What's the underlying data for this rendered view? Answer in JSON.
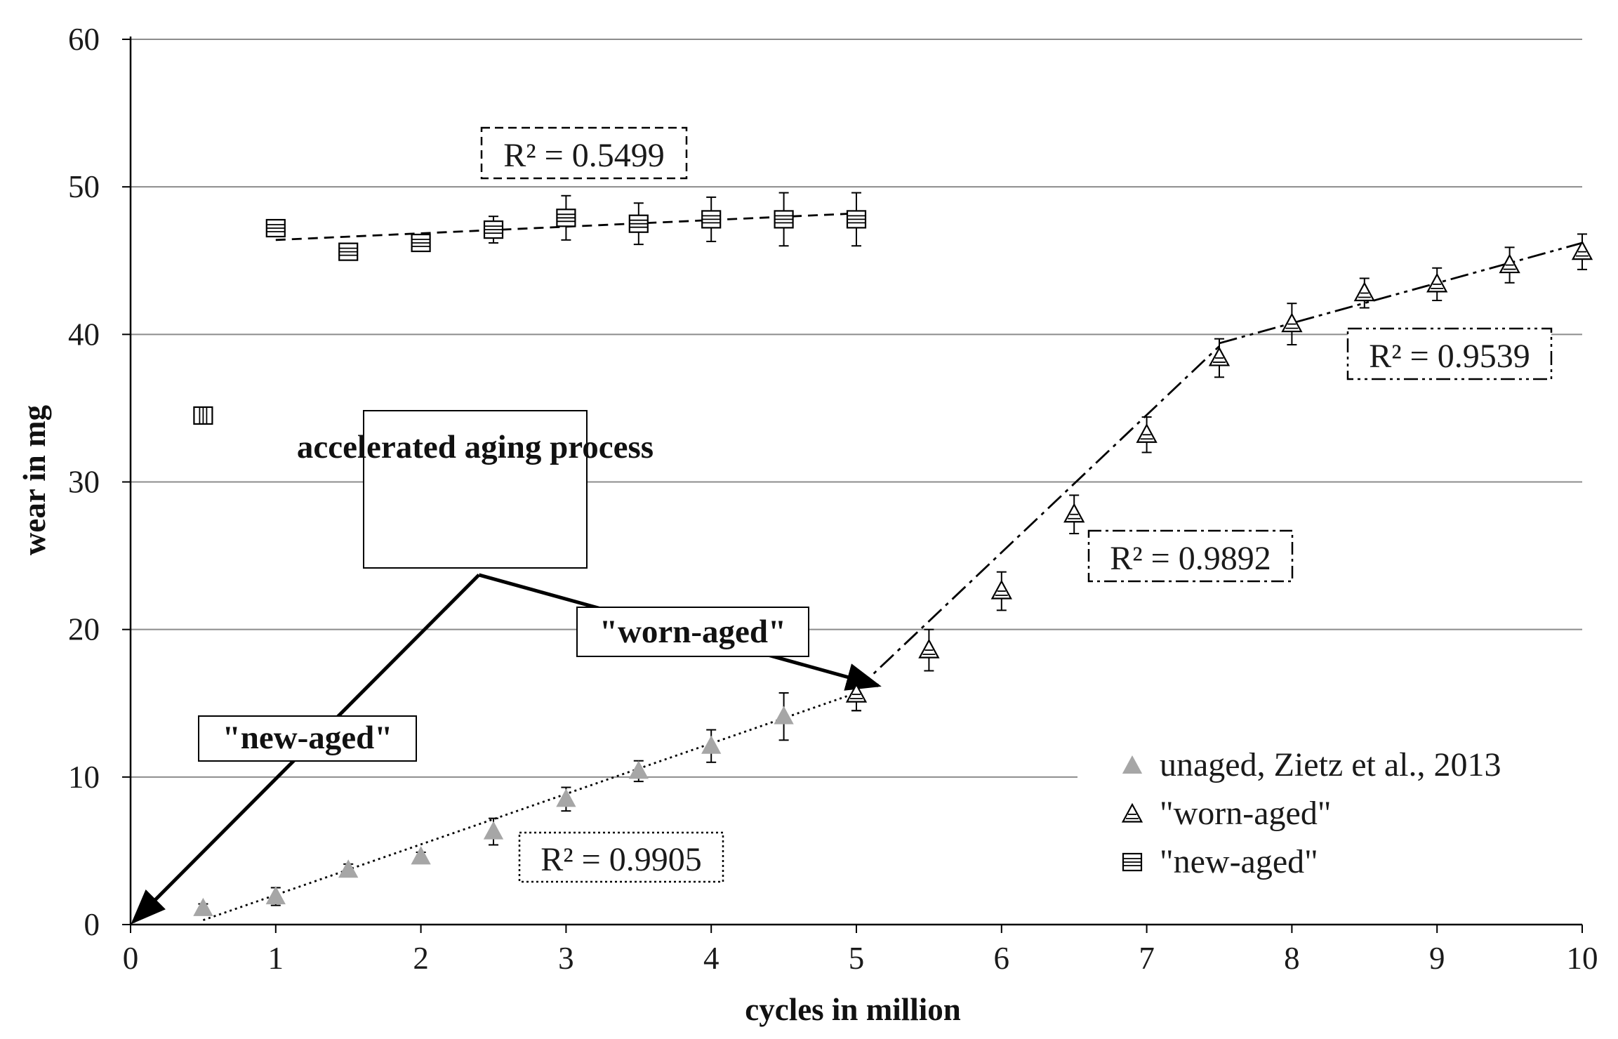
{
  "chart_data": {
    "type": "scatter",
    "title": "",
    "xlabel": "cycles in million",
    "ylabel": "wear in mg",
    "xlim": [
      0,
      10
    ],
    "ylim": [
      0,
      60
    ],
    "x_ticks": [
      "0",
      "1",
      "2",
      "3",
      "4",
      "5",
      "6",
      "7",
      "8",
      "9",
      "10"
    ],
    "y_ticks": [
      "0",
      "10",
      "20",
      "30",
      "40",
      "50",
      "60"
    ],
    "grid": "horizontal",
    "legend_position": "bottom-right",
    "series": [
      {
        "name": "unaged, Zietz et al., 2013",
        "marker": "filled-triangle",
        "color": "#a6a6a6",
        "x": [
          0.5,
          1.0,
          1.5,
          2.0,
          2.5,
          3.0,
          3.5,
          4.0,
          4.5,
          5.0
        ],
        "y": [
          1.1,
          1.9,
          3.7,
          4.6,
          6.3,
          8.5,
          10.4,
          12.1,
          14.1,
          15.6
        ],
        "err": [
          0.3,
          0.6,
          0.4,
          0.3,
          0.9,
          0.8,
          0.7,
          1.1,
          1.6,
          1.1
        ]
      },
      {
        "name": "\"worn-aged\"",
        "marker": "hatched-triangle",
        "color": "#000000",
        "x": [
          5.0,
          5.5,
          6.0,
          6.5,
          7.0,
          7.5,
          8.0,
          8.5,
          9.0,
          9.5,
          10.0
        ],
        "y": [
          15.6,
          18.6,
          22.6,
          27.8,
          33.2,
          38.4,
          40.7,
          42.8,
          43.4,
          44.7,
          45.6
        ],
        "err": [
          1.1,
          1.4,
          1.3,
          1.3,
          1.2,
          1.3,
          1.4,
          1.0,
          1.1,
          1.2,
          1.2
        ]
      },
      {
        "name": "\"new-aged\"",
        "marker": "hatched-square",
        "color": "#000000",
        "x": [
          1.0,
          1.5,
          2.0,
          2.5,
          3.0,
          3.5,
          4.0,
          4.5,
          5.0
        ],
        "y": [
          47.2,
          45.6,
          46.2,
          47.1,
          47.9,
          47.5,
          47.8,
          47.8,
          47.8
        ],
        "err": [
          0.3,
          0.3,
          0.4,
          0.9,
          1.5,
          1.4,
          1.5,
          1.8,
          1.8
        ]
      },
      {
        "name": "",
        "marker": "vertical-hatched-square",
        "color": "#000000",
        "x": [
          0.5
        ],
        "y": [
          34.5
        ],
        "err": [
          0
        ]
      }
    ],
    "trendlines": [
      {
        "series": "unaged",
        "style": "dotted",
        "x": [
          0.5,
          5.0
        ],
        "y": [
          0.3,
          15.7
        ],
        "r2": "R² = 0.9905"
      },
      {
        "series": "worn-aged 5-7.5",
        "style": "dash-dot",
        "x": [
          5.0,
          7.5
        ],
        "y": [
          15.9,
          39.2
        ],
        "r2": "R² = 0.9892"
      },
      {
        "series": "worn-aged 7.5-10",
        "style": "dash-dot-dot",
        "x": [
          7.5,
          10.0
        ],
        "y": [
          39.4,
          46.2
        ],
        "r2": "R² = 0.9539"
      },
      {
        "series": "new-aged",
        "style": "dashed",
        "x": [
          1.0,
          5.0
        ],
        "y": [
          46.4,
          48.2
        ],
        "r2": "R² = 0.5499"
      }
    ],
    "annotations": {
      "process_box": "accelerated aging process",
      "worn_aged_label": "\"worn-aged\"",
      "new_aged_label": "\"new-aged\"",
      "process_origin": [
        2.4,
        23.7
      ],
      "worn_arrow_end": [
        5.15,
        16.2
      ],
      "new_arrow_end": [
        0.0,
        0.0
      ]
    }
  }
}
